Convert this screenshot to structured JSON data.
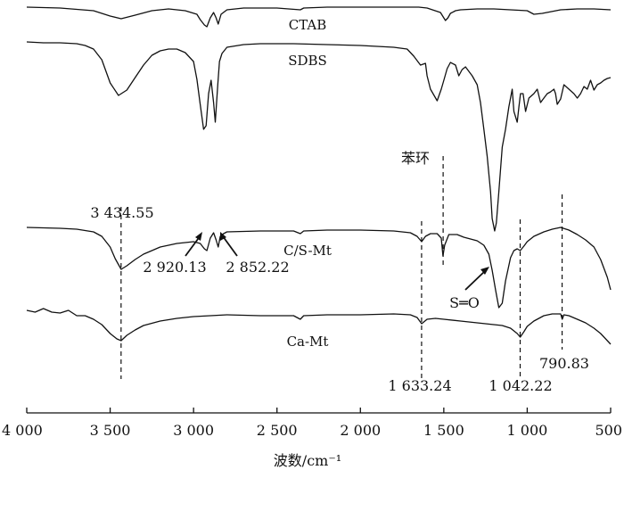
{
  "chart_data": {
    "type": "line",
    "xlabel": "波数/cm⁻¹",
    "xlim": [
      4000,
      500
    ],
    "x_ticks": [
      4000,
      3500,
      3000,
      2500,
      2000,
      1500,
      1000,
      500
    ],
    "x_tick_labels": [
      "4 000",
      "3 500",
      "3 000",
      "2 500",
      "2 000",
      "1 500",
      "1 000",
      "500"
    ],
    "y_axis_shown": false,
    "grid": false,
    "reference_lines": [
      3434.55,
      1633.24,
      1504,
      1042.22,
      790.83
    ],
    "annotations": [
      {
        "text": "3 434.55",
        "x": 3434.55
      },
      {
        "text": "2 920.13",
        "x": 2920.13
      },
      {
        "text": "2 852.22",
        "x": 2852.22
      },
      {
        "text": "苯环",
        "x": 1504
      },
      {
        "text": "S═O",
        "x": 1190
      },
      {
        "text": "1 633.24",
        "x": 1633.24
      },
      {
        "text": "1 042.22",
        "x": 1042.22
      },
      {
        "text": "790.83",
        "x": 790.83
      }
    ],
    "series": [
      {
        "name": "CTAB",
        "x": [
          4000,
          3800,
          3600,
          3500,
          3434,
          3350,
          3250,
          3150,
          3050,
          2980,
          2960,
          2935,
          2920,
          2900,
          2880,
          2865,
          2852,
          2835,
          2800,
          2700,
          2500,
          2360,
          2340,
          2200,
          2000,
          1800,
          1650,
          1600,
          1520,
          1490,
          1475,
          1460,
          1430,
          1400,
          1300,
          1200,
          1100,
          1000,
          960,
          910,
          800,
          700,
          600,
          500
        ],
        "y": [
          0,
          1,
          4,
          10,
          13,
          9,
          4,
          2,
          4,
          8,
          14,
          20,
          22,
          12,
          6,
          12,
          19,
          8,
          3,
          1,
          1,
          3,
          1,
          0,
          0,
          0,
          0,
          1,
          6,
          15,
          12,
          7,
          4,
          3,
          2,
          2,
          3,
          4,
          8,
          7,
          3,
          2,
          2,
          3
        ]
      },
      {
        "name": "SDBS",
        "x": [
          4000,
          3900,
          3800,
          3700,
          3650,
          3600,
          3550,
          3500,
          3450,
          3400,
          3350,
          3300,
          3250,
          3200,
          3150,
          3100,
          3050,
          3000,
          2980,
          2960,
          2940,
          2925,
          2910,
          2895,
          2880,
          2870,
          2855,
          2845,
          2830,
          2800,
          2700,
          2600,
          2400,
          2200,
          2000,
          1900,
          1800,
          1720,
          1680,
          1640,
          1610,
          1600,
          1580,
          1540,
          1515,
          1500,
          1480,
          1460,
          1430,
          1410,
          1390,
          1370,
          1330,
          1300,
          1280,
          1260,
          1240,
          1220,
          1210,
          1195,
          1185,
          1170,
          1150,
          1130,
          1110,
          1090,
          1080,
          1060,
          1050,
          1040,
          1025,
          1010,
          990,
          960,
          940,
          920,
          900,
          880,
          860,
          840,
          830,
          820,
          800,
          780,
          750,
          720,
          700,
          680,
          660,
          640,
          620,
          600,
          580,
          560,
          540,
          520,
          500
        ],
        "y": [
          2,
          3,
          3,
          4,
          6,
          10,
          22,
          48,
          62,
          56,
          42,
          28,
          17,
          12,
          10,
          10,
          14,
          24,
          44,
          72,
          100,
          96,
          60,
          45,
          70,
          92,
          50,
          24,
          15,
          8,
          5,
          4,
          4,
          5,
          6,
          7,
          8,
          10,
          18,
          28,
          26,
          40,
          55,
          68,
          55,
          45,
          32,
          25,
          28,
          40,
          33,
          30,
          40,
          50,
          70,
          100,
          130,
          170,
          200,
          214,
          205,
          170,
          120,
          100,
          75,
          55,
          80,
          92,
          75,
          60,
          60,
          80,
          65,
          60,
          55,
          70,
          65,
          60,
          58,
          55,
          60,
          72,
          66,
          50,
          55,
          60,
          65,
          60,
          52,
          55,
          45,
          56,
          50,
          48,
          45,
          43,
          42
        ]
      },
      {
        "name": "C/S-Mt",
        "x": [
          4000,
          3800,
          3700,
          3600,
          3550,
          3500,
          3470,
          3434,
          3400,
          3350,
          3300,
          3250,
          3200,
          3150,
          3100,
          3050,
          3000,
          2960,
          2935,
          2920,
          2900,
          2880,
          2865,
          2852,
          2840,
          2820,
          2800,
          2600,
          2400,
          2360,
          2340,
          2200,
          2000,
          1800,
          1700,
          1660,
          1633,
          1610,
          1580,
          1540,
          1515,
          1505,
          1495,
          1470,
          1420,
          1380,
          1340,
          1300,
          1260,
          1230,
          1210,
          1190,
          1170,
          1150,
          1130,
          1100,
          1080,
          1060,
          1042,
          1020,
          1000,
          960,
          900,
          850,
          800,
          750,
          700,
          650,
          600,
          560,
          520,
          500
        ],
        "y": [
          0,
          1,
          2,
          5,
          10,
          22,
          35,
          47,
          43,
          36,
          30,
          26,
          22,
          20,
          18,
          17,
          16,
          18,
          24,
          26,
          12,
          6,
          14,
          22,
          10,
          7,
          5,
          4,
          4,
          7,
          4,
          3,
          3,
          4,
          6,
          10,
          16,
          10,
          7,
          7,
          12,
          32,
          20,
          8,
          8,
          11,
          13,
          15,
          20,
          30,
          48,
          70,
          90,
          85,
          60,
          34,
          26,
          24,
          26,
          21,
          16,
          10,
          5,
          2,
          0,
          3,
          8,
          14,
          22,
          36,
          56,
          70
        ]
      },
      {
        "name": "Ca-Mt",
        "x": [
          4000,
          3950,
          3900,
          3850,
          3800,
          3750,
          3700,
          3650,
          3600,
          3550,
          3500,
          3460,
          3434,
          3400,
          3350,
          3300,
          3200,
          3100,
          3000,
          2900,
          2800,
          2600,
          2400,
          2360,
          2340,
          2200,
          2000,
          1800,
          1700,
          1660,
          1633,
          1600,
          1550,
          1500,
          1400,
          1300,
          1200,
          1150,
          1100,
          1060,
          1042,
          1020,
          1000,
          960,
          900,
          850,
          800,
          790,
          780,
          750,
          700,
          650,
          600,
          560,
          520,
          500
        ],
        "y": [
          0,
          2,
          -2,
          2,
          3,
          0,
          6,
          6,
          10,
          16,
          26,
          32,
          34,
          28,
          22,
          17,
          12,
          9,
          7,
          6,
          5,
          6,
          6,
          10,
          6,
          5,
          5,
          4,
          5,
          8,
          15,
          10,
          9,
          10,
          12,
          14,
          16,
          17,
          20,
          26,
          30,
          24,
          18,
          12,
          6,
          4,
          4,
          10,
          5,
          6,
          10,
          14,
          20,
          26,
          34,
          38
        ]
      }
    ]
  },
  "series_labels": {
    "ctab": "CTAB",
    "sdbs": "SDBS",
    "cs_mt": "C/S-Mt",
    "ca_mt": "Ca-Mt"
  },
  "annotation_text": {
    "a3434": "3 434.55",
    "a2920": "2 920.13",
    "a2852": "2 852.22",
    "ring": "苯环",
    "so": "S═O",
    "a1633": "1 633.24",
    "a1042": "1 042.22",
    "a790": "790.83"
  },
  "axis": {
    "title": "波数/cm⁻¹"
  }
}
